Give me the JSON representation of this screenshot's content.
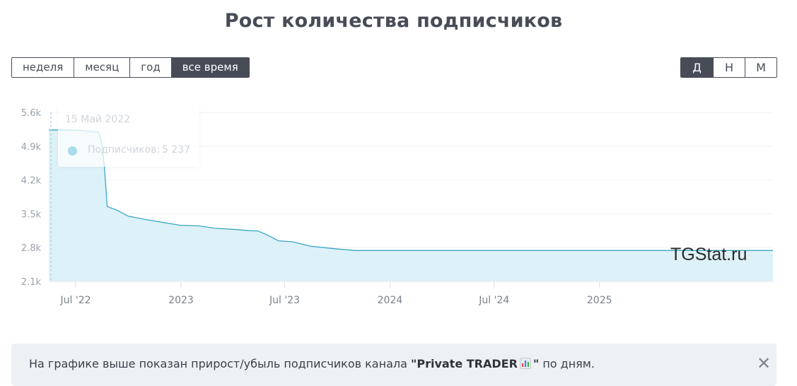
{
  "header": {
    "title": "Рост количества подписчиков"
  },
  "period_buttons": [
    {
      "label": "неделя",
      "active": false
    },
    {
      "label": "месяц",
      "active": false
    },
    {
      "label": "год",
      "active": false
    },
    {
      "label": "все время",
      "active": true
    }
  ],
  "granularity_buttons": [
    {
      "label": "Д",
      "active": true
    },
    {
      "label": "Н",
      "active": false
    },
    {
      "label": "М",
      "active": false
    }
  ],
  "tooltip": {
    "date": "15 Май 2022",
    "series_label": "Подписчиков:",
    "value": "5 237"
  },
  "watermark": "TGStat.ru",
  "info": {
    "prefix": "На графике выше показан прирост/убыль подписчиков канала ",
    "channel": "\"Private TRADER",
    "channel_suffix": "\"",
    "suffix": " по дням.",
    "emoji_icon": "bar-chart-emoji-icon",
    "close_icon": "close-icon"
  },
  "chart_data": {
    "type": "area",
    "x_axis_type": "date",
    "y_ticks": [
      2100,
      2800,
      3500,
      4200,
      4900,
      5600
    ],
    "y_tick_labels": [
      "2.1k",
      "2.8k",
      "3.5k",
      "4.2k",
      "4.9k",
      "5.6k"
    ],
    "ylim": [
      2100,
      5600
    ],
    "xlim": [
      "2022-05-15",
      "2025-10-31"
    ],
    "x_ticks": [
      "2022-07-01",
      "2023-01-01",
      "2023-07-01",
      "2024-01-01",
      "2024-07-01",
      "2025-01-01"
    ],
    "x_tick_labels": [
      "Jul '22",
      "2023",
      "Jul '23",
      "2024",
      "Jul '24",
      "2025"
    ],
    "grid": true,
    "colors": {
      "line": "#39a9c6",
      "fill": "#ddf1f8",
      "crosshair": "#a7dceb"
    },
    "series": [
      {
        "points": [
          [
            "2022-05-15",
            5237
          ],
          [
            "2022-05-20",
            5237
          ],
          [
            "2022-06-10",
            5237
          ],
          [
            "2022-07-10",
            5230
          ],
          [
            "2022-07-20",
            5210
          ],
          [
            "2022-08-10",
            5195
          ],
          [
            "2022-08-15",
            5000
          ],
          [
            "2022-08-20",
            4500
          ],
          [
            "2022-08-25",
            3650
          ],
          [
            "2022-09-10",
            3580
          ],
          [
            "2022-10-01",
            3450
          ],
          [
            "2022-11-01",
            3380
          ],
          [
            "2022-12-01",
            3320
          ],
          [
            "2023-01-01",
            3260
          ],
          [
            "2023-02-01",
            3250
          ],
          [
            "2023-03-01",
            3200
          ],
          [
            "2023-04-01",
            3180
          ],
          [
            "2023-05-01",
            3150
          ],
          [
            "2023-05-15",
            3145
          ],
          [
            "2023-06-01",
            3060
          ],
          [
            "2023-06-20",
            2940
          ],
          [
            "2023-07-15",
            2920
          ],
          [
            "2023-08-15",
            2830
          ],
          [
            "2023-10-01",
            2770
          ],
          [
            "2023-11-01",
            2740
          ],
          [
            "2024-06-01",
            2740
          ],
          [
            "2025-06-01",
            2740
          ],
          [
            "2025-10-31",
            2740
          ]
        ]
      }
    ]
  }
}
